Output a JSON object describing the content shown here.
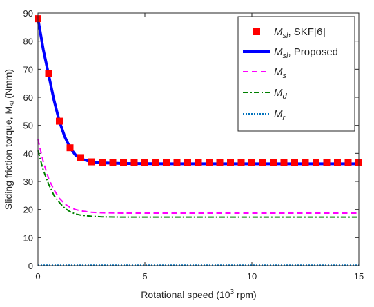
{
  "chart_data": {
    "type": "line",
    "xlabel": "Rotational speed (10^3 rpm)",
    "ylabel": "Sliding friction torque, M_sl (Nmm)",
    "xlim": [
      0,
      15
    ],
    "ylim": [
      0,
      90
    ],
    "xticks": [
      0,
      5,
      10,
      15
    ],
    "yticks": [
      0,
      10,
      20,
      30,
      40,
      50,
      60,
      70,
      80,
      90
    ],
    "grid": false,
    "legend_position": "top-right",
    "series": [
      {
        "name": "M_sl, SKF[6]",
        "style": "markers",
        "color": "#ff0000",
        "x": [
          0,
          0.5,
          1,
          1.5,
          2,
          2.5,
          3,
          3.5,
          4,
          4.5,
          5,
          5.5,
          6,
          6.5,
          7,
          7.5,
          8,
          8.5,
          9,
          9.5,
          10,
          10.5,
          11,
          11.5,
          12,
          12.5,
          13,
          13.5,
          14,
          14.5,
          15
        ],
        "y": [
          88,
          68.5,
          51.5,
          42,
          38.5,
          37,
          36.8,
          36.7,
          36.7,
          36.7,
          36.7,
          36.7,
          36.7,
          36.7,
          36.7,
          36.7,
          36.7,
          36.7,
          36.7,
          36.7,
          36.7,
          36.7,
          36.7,
          36.7,
          36.7,
          36.7,
          36.7,
          36.7,
          36.7,
          36.7,
          36.7
        ]
      },
      {
        "name": "M_sl, Proposed",
        "style": "solid",
        "color": "#0000ff",
        "x": [
          0,
          0.25,
          0.5,
          0.75,
          1,
          1.25,
          1.5,
          1.75,
          2,
          2.5,
          3,
          4,
          6,
          9,
          12,
          15
        ],
        "y": [
          88,
          77,
          68,
          59,
          51.5,
          46,
          42,
          39.5,
          38,
          37,
          36.6,
          36.4,
          36.3,
          36.3,
          36.3,
          36.3
        ]
      },
      {
        "name": "M_s",
        "style": "dashed",
        "color": "#ff00ff",
        "x": [
          0,
          0.25,
          0.5,
          0.75,
          1,
          1.25,
          1.5,
          1.75,
          2,
          2.5,
          3,
          4,
          6,
          9,
          12,
          15
        ],
        "y": [
          45,
          37,
          31,
          27,
          24,
          22,
          20.8,
          20,
          19.5,
          19,
          18.8,
          18.7,
          18.7,
          18.7,
          18.7,
          18.7
        ]
      },
      {
        "name": "M_d",
        "style": "dash-dot",
        "color": "#008000",
        "x": [
          0,
          0.25,
          0.5,
          0.75,
          1,
          1.25,
          1.5,
          1.75,
          2,
          2.5,
          3,
          4,
          6,
          9,
          12,
          15
        ],
        "y": [
          41,
          34,
          29,
          25,
          22.5,
          20.5,
          19.2,
          18.4,
          18,
          17.6,
          17.4,
          17.3,
          17.3,
          17.3,
          17.3,
          17.3
        ]
      },
      {
        "name": "M_r",
        "style": "dotted",
        "color": "#0072bd",
        "x": [
          0,
          15
        ],
        "y": [
          0.2,
          0.2
        ]
      }
    ]
  },
  "labels": {
    "xlabel_main": "Rotational speed (10",
    "xlabel_exp": "3",
    "xlabel_tail": " rpm)",
    "ylabel_main": "Sliding friction torque, M",
    "ylabel_sub": "sl",
    "ylabel_tail": " (Nmm)"
  },
  "legend": [
    {
      "sym": "M",
      "sub": "sl",
      "tail": ", SKF[6]"
    },
    {
      "sym": "M",
      "sub": "sl",
      "tail": ", Proposed"
    },
    {
      "sym": "M",
      "sub": "s",
      "tail": ""
    },
    {
      "sym": "M",
      "sub": "d",
      "tail": ""
    },
    {
      "sym": "M",
      "sub": "r",
      "tail": ""
    }
  ]
}
